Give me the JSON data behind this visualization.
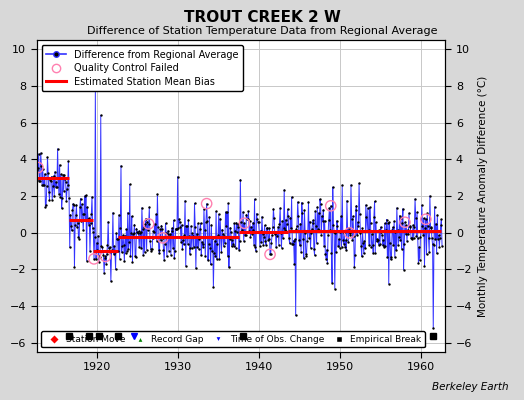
{
  "title": "TROUT CREEK 2 W",
  "subtitle": "Difference of Station Temperature Data from Regional Average",
  "ylabel_right": "Monthly Temperature Anomaly Difference (°C)",
  "xlim": [
    1912.5,
    1963.0
  ],
  "ylim": [
    -6.5,
    10.5
  ],
  "yticks": [
    -6,
    -4,
    -2,
    0,
    2,
    4,
    6,
    8,
    10
  ],
  "xticks": [
    1920,
    1930,
    1940,
    1950,
    1960
  ],
  "background_color": "#d8d8d8",
  "plot_bg_color": "#ffffff",
  "grid_color": "#c8c8c8",
  "line_color": "#3333ff",
  "marker_color": "#000000",
  "bias_color": "#ff0000",
  "qc_color": "#ff80b0",
  "watermark": "Berkeley Earth",
  "segments": [
    {
      "x_start": 1912.5,
      "x_end": 1916.5,
      "bias": 3.0
    },
    {
      "x_start": 1916.5,
      "x_end": 1919.5,
      "bias": 0.7
    },
    {
      "x_start": 1919.5,
      "x_end": 1922.5,
      "bias": -1.0
    },
    {
      "x_start": 1922.5,
      "x_end": 1937.5,
      "bias": -0.22
    },
    {
      "x_start": 1937.5,
      "x_end": 1943.5,
      "bias": 0.05
    },
    {
      "x_start": 1943.5,
      "x_end": 1962.5,
      "bias": 0.08
    }
  ],
  "empirical_breaks": [
    1916.5,
    1919.0,
    1920.2,
    1922.5,
    1938.0,
    1961.5
  ],
  "station_moves": [],
  "record_gaps": [],
  "obs_changes": [
    1924.5
  ],
  "qc_failed_years": [
    1912.7,
    1919.6,
    1921.0,
    1926.3,
    1928.1,
    1933.5,
    1938.2,
    1941.3,
    1948.8,
    1951.2,
    1958.0,
    1960.6
  ],
  "seed": 42
}
